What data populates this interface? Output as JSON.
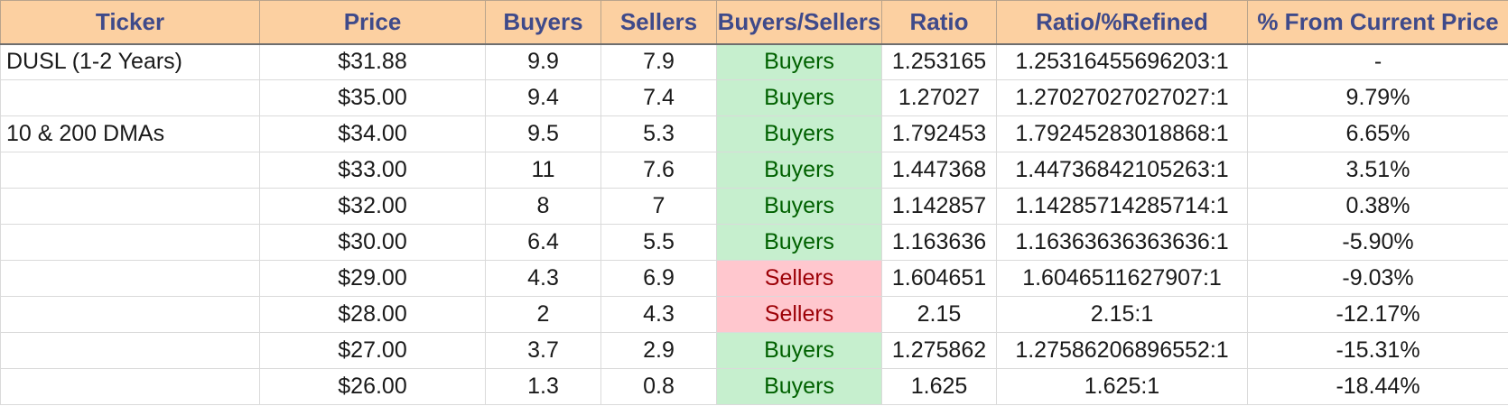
{
  "headers": [
    "Ticker",
    "Price",
    "Buyers",
    "Sellers",
    "Buyers/Sellers",
    "Ratio",
    "Ratio/%Refined",
    "% From Current Price"
  ],
  "rows": [
    {
      "ticker": "DUSL (1-2 Years)",
      "price": "$31.88",
      "buyers": "9.9",
      "sellers": "7.9",
      "side": "Buyers",
      "ratio": "1.253165",
      "refined": "1.25316455696203:1",
      "pct": "-"
    },
    {
      "ticker": "",
      "price": "$35.00",
      "buyers": "9.4",
      "sellers": "7.4",
      "side": "Buyers",
      "ratio": "1.27027",
      "refined": "1.27027027027027:1",
      "pct": "9.79%"
    },
    {
      "ticker": "10 & 200 DMAs",
      "price": "$34.00",
      "buyers": "9.5",
      "sellers": "5.3",
      "side": "Buyers",
      "ratio": "1.792453",
      "refined": "1.79245283018868:1",
      "pct": "6.65%"
    },
    {
      "ticker": "",
      "price": "$33.00",
      "buyers": "11",
      "sellers": "7.6",
      "side": "Buyers",
      "ratio": "1.447368",
      "refined": "1.44736842105263:1",
      "pct": "3.51%"
    },
    {
      "ticker": "",
      "price": "$32.00",
      "buyers": "8",
      "sellers": "7",
      "side": "Buyers",
      "ratio": "1.142857",
      "refined": "1.14285714285714:1",
      "pct": "0.38%"
    },
    {
      "ticker": "",
      "price": "$30.00",
      "buyers": "6.4",
      "sellers": "5.5",
      "side": "Buyers",
      "ratio": "1.163636",
      "refined": "1.16363636363636:1",
      "pct": "-5.90%"
    },
    {
      "ticker": "",
      "price": "$29.00",
      "buyers": "4.3",
      "sellers": "6.9",
      "side": "Sellers",
      "ratio": "1.604651",
      "refined": "1.6046511627907:1",
      "pct": "-9.03%"
    },
    {
      "ticker": "",
      "price": "$28.00",
      "buyers": "2",
      "sellers": "4.3",
      "side": "Sellers",
      "ratio": "2.15",
      "refined": "2.15:1",
      "pct": "-12.17%"
    },
    {
      "ticker": "",
      "price": "$27.00",
      "buyers": "3.7",
      "sellers": "2.9",
      "side": "Buyers",
      "ratio": "1.275862",
      "refined": "1.27586206896552:1",
      "pct": "-15.31%"
    },
    {
      "ticker": "",
      "price": "$26.00",
      "buyers": "1.3",
      "sellers": "0.8",
      "side": "Buyers",
      "ratio": "1.625",
      "refined": "1.625:1",
      "pct": "-18.44%"
    }
  ],
  "colors": {
    "header_bg": "#fcd0a1",
    "header_text": "#3f4a8a",
    "buyers_bg": "#c6efce",
    "buyers_text": "#006100",
    "sellers_bg": "#ffc7ce",
    "sellers_text": "#9c0006"
  }
}
